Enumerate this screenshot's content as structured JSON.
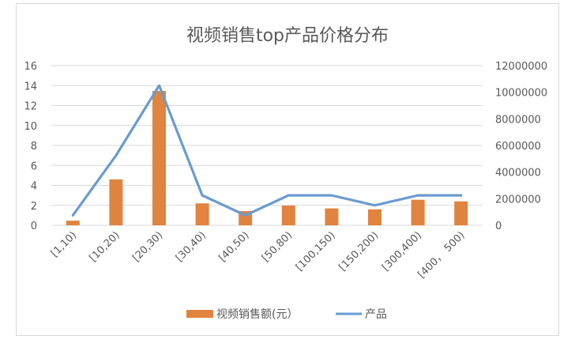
{
  "chart_data": {
    "type": "bar+line",
    "title": "视频销售top产品价格分布",
    "categories": [
      "[1,10)",
      "[10,20)",
      "[20,30)",
      "[30,40)",
      "[40,50)",
      "[50,80)",
      "[100,150)",
      "[150,200)",
      "[300,400)",
      "[400， 500)"
    ],
    "series": [
      {
        "name": "视频销售额(元）",
        "type": "bar",
        "axis": "right",
        "color": "#E0843F",
        "values": [
          350000,
          3450000,
          10100000,
          1650000,
          1070000,
          1480000,
          1270000,
          1200000,
          1920000,
          1800000
        ]
      },
      {
        "name": "产品",
        "type": "line",
        "axis": "left",
        "color": "#6A9BD1",
        "values": [
          1,
          7,
          14,
          3,
          1,
          3,
          3,
          2,
          3,
          3
        ]
      }
    ],
    "left_axis": {
      "min": 0,
      "max": 16,
      "ticks": [
        "0",
        "2",
        "4",
        "6",
        "8",
        "10",
        "12",
        "14",
        "16"
      ]
    },
    "right_axis": {
      "min": 0,
      "max": 12000000,
      "ticks": [
        "0",
        "2000000",
        "4000000",
        "6000000",
        "8000000",
        "10000000",
        "12000000"
      ]
    },
    "grid": true,
    "legend_position": "bottom"
  }
}
